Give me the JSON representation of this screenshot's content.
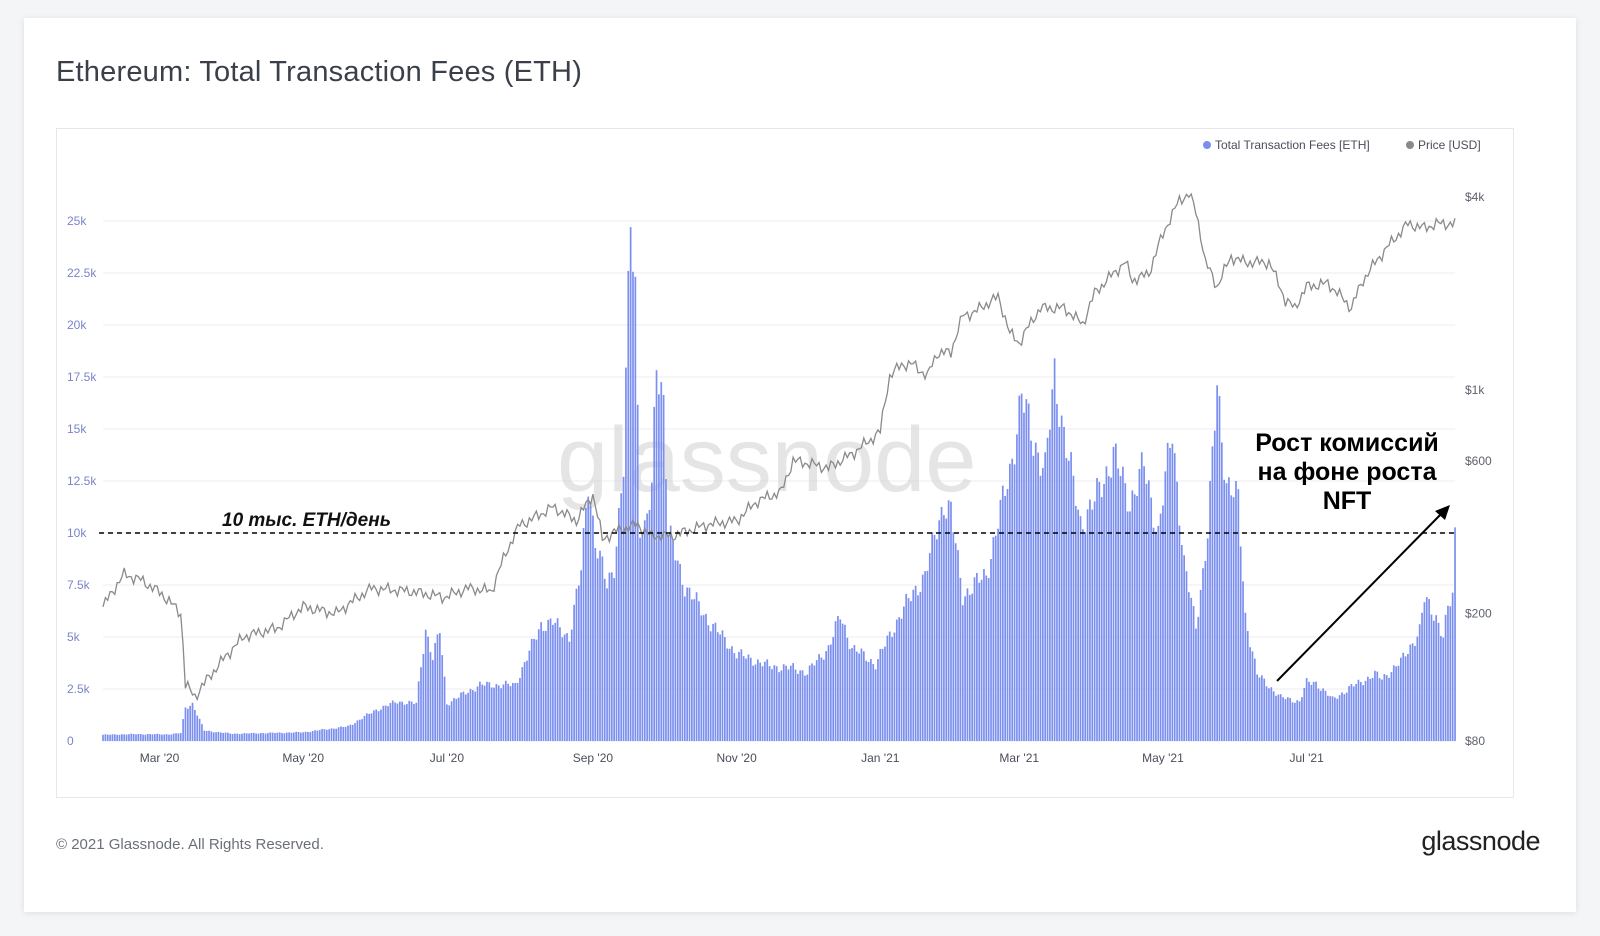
{
  "title": "Ethereum: Total Transaction Fees (ETH)",
  "footer": {
    "copyright": "© 2021 Glassnode. All Rights Reserved.",
    "logo": "glassnode"
  },
  "watermark": "glassnode",
  "colors": {
    "bars": "#7b8ff0",
    "price": "#8a8a8a",
    "grid": "#eeeef2",
    "annotation": "#000000"
  },
  "chart_data": {
    "type": "bar",
    "legend": [
      "Total Transaction Fees [ETH]",
      "Price [USD]"
    ],
    "legend_position": "top-right",
    "grid": true,
    "y_left": {
      "ticks": [
        0,
        2500,
        5000,
        7500,
        10000,
        12500,
        15000,
        17500,
        20000,
        22500,
        25000
      ],
      "tick_labels": [
        "0",
        "2.5k",
        "5k",
        "7.5k",
        "10k",
        "12.5k",
        "15k",
        "17.5k",
        "20k",
        "22.5k",
        "25k"
      ],
      "range": [
        0,
        25000
      ]
    },
    "y_right": {
      "scale": "log",
      "ticks": [
        80,
        200,
        600,
        1000,
        4000
      ],
      "tick_labels": [
        "$80",
        "$200",
        "$600",
        "$1k",
        "$4k"
      ],
      "range": [
        80,
        4000
      ]
    },
    "x_ticks": [
      "Mar '20",
      "May '20",
      "Jul '20",
      "Sep '20",
      "Nov '20",
      "Jan '21",
      "Mar '21",
      "May '21",
      "Jul '21"
    ],
    "x_tick_dates": [
      "2020-03-01",
      "2020-05-01",
      "2020-07-01",
      "2020-09-01",
      "2020-11-01",
      "2021-01-01",
      "2021-03-01",
      "2021-05-01",
      "2021-07-01"
    ],
    "x_range": [
      "2020-02-06",
      "2021-08-23"
    ],
    "fees_series": {
      "name": "Total Transaction Fees [ETH]",
      "keypoints": [
        [
          "2020-02-06",
          300
        ],
        [
          "2020-02-20",
          330
        ],
        [
          "2020-03-05",
          320
        ],
        [
          "2020-03-10",
          380
        ],
        [
          "2020-03-12",
          1600
        ],
        [
          "2020-03-15",
          1800
        ],
        [
          "2020-03-20",
          500
        ],
        [
          "2020-04-01",
          350
        ],
        [
          "2020-05-01",
          420
        ],
        [
          "2020-05-20",
          700
        ],
        [
          "2020-06-01",
          1500
        ],
        [
          "2020-06-10",
          1900
        ],
        [
          "2020-06-18",
          1800
        ],
        [
          "2020-06-22",
          5400
        ],
        [
          "2020-06-25",
          4000
        ],
        [
          "2020-06-28",
          5300
        ],
        [
          "2020-07-01",
          1800
        ],
        [
          "2020-07-15",
          2700
        ],
        [
          "2020-07-20",
          2700
        ],
        [
          "2020-07-30",
          2700
        ],
        [
          "2020-08-10",
          5600
        ],
        [
          "2020-08-15",
          5700
        ],
        [
          "2020-08-22",
          5000
        ],
        [
          "2020-08-27",
          8200
        ],
        [
          "2020-08-30",
          12700
        ],
        [
          "2020-09-02",
          9500
        ],
        [
          "2020-09-07",
          7500
        ],
        [
          "2020-09-10",
          8500
        ],
        [
          "2020-09-14",
          13000
        ],
        [
          "2020-09-17",
          25300
        ],
        [
          "2020-09-19",
          22000
        ],
        [
          "2020-09-21",
          10500
        ],
        [
          "2020-09-23",
          10000
        ],
        [
          "2020-09-26",
          12000
        ],
        [
          "2020-09-28",
          18500
        ],
        [
          "2020-10-01",
          16500
        ],
        [
          "2020-10-03",
          10000
        ],
        [
          "2020-10-10",
          7500
        ],
        [
          "2020-10-20",
          5800
        ],
        [
          "2020-11-01",
          4200
        ],
        [
          "2020-11-15",
          3600
        ],
        [
          "2020-11-25",
          3500
        ],
        [
          "2020-12-01",
          3300
        ],
        [
          "2020-12-10",
          4500
        ],
        [
          "2020-12-15",
          6000
        ],
        [
          "2020-12-20",
          4500
        ],
        [
          "2020-12-30",
          3700
        ],
        [
          "2021-01-10",
          6200
        ],
        [
          "2021-01-20",
          8000
        ],
        [
          "2021-01-28",
          11500
        ],
        [
          "2021-01-31",
          11000
        ],
        [
          "2021-02-05",
          7000
        ],
        [
          "2021-02-15",
          8000
        ],
        [
          "2021-02-25",
          13000
        ],
        [
          "2021-03-02",
          16500
        ],
        [
          "2021-03-07",
          14500
        ],
        [
          "2021-03-12",
          13000
        ],
        [
          "2021-03-16",
          17600
        ],
        [
          "2021-03-22",
          13500
        ],
        [
          "2021-03-27",
          10500
        ],
        [
          "2021-04-02",
          11500
        ],
        [
          "2021-04-10",
          13800
        ],
        [
          "2021-04-17",
          11500
        ],
        [
          "2021-04-23",
          13200
        ],
        [
          "2021-04-29",
          10000
        ],
        [
          "2021-05-05",
          15000
        ],
        [
          "2021-05-10",
          8500
        ],
        [
          "2021-05-15",
          5500
        ],
        [
          "2021-05-20",
          10000
        ],
        [
          "2021-05-24",
          17000
        ],
        [
          "2021-05-28",
          12500
        ],
        [
          "2021-06-02",
          11500
        ],
        [
          "2021-06-05",
          6000
        ],
        [
          "2021-06-10",
          3200
        ],
        [
          "2021-06-20",
          2100
        ],
        [
          "2021-06-28",
          1900
        ],
        [
          "2021-07-01",
          2800
        ],
        [
          "2021-07-05",
          2800
        ],
        [
          "2021-07-12",
          2000
        ],
        [
          "2021-07-20",
          2600
        ],
        [
          "2021-07-30",
          3200
        ],
        [
          "2021-08-02",
          3000
        ],
        [
          "2021-08-10",
          3800
        ],
        [
          "2021-08-18",
          5300
        ],
        [
          "2021-08-20",
          6800
        ],
        [
          "2021-08-25",
          6000
        ],
        [
          "2021-08-28",
          5000
        ],
        [
          "2021-08-30",
          6300
        ],
        [
          "2021-09-01",
          7000
        ],
        [
          "2021-09-02",
          9900
        ]
      ]
    },
    "price_series": {
      "name": "Price [USD]",
      "keypoints": [
        [
          "2020-02-06",
          210
        ],
        [
          "2020-02-15",
          265
        ],
        [
          "2020-02-22",
          255
        ],
        [
          "2020-03-02",
          230
        ],
        [
          "2020-03-10",
          200
        ],
        [
          "2020-03-12",
          120
        ],
        [
          "2020-03-16",
          110
        ],
        [
          "2020-03-25",
          135
        ],
        [
          "2020-04-06",
          170
        ],
        [
          "2020-04-20",
          180
        ],
        [
          "2020-05-01",
          210
        ],
        [
          "2020-05-15",
          200
        ],
        [
          "2020-05-30",
          240
        ],
        [
          "2020-06-15",
          235
        ],
        [
          "2020-06-30",
          225
        ],
        [
          "2020-07-10",
          240
        ],
        [
          "2020-07-20",
          235
        ],
        [
          "2020-07-27",
          320
        ],
        [
          "2020-08-01",
          380
        ],
        [
          "2020-08-05",
          390
        ],
        [
          "2020-08-15",
          430
        ],
        [
          "2020-08-25",
          390
        ],
        [
          "2020-09-01",
          470
        ],
        [
          "2020-09-05",
          340
        ],
        [
          "2020-09-10",
          360
        ],
        [
          "2020-09-20",
          380
        ],
        [
          "2020-09-25",
          350
        ],
        [
          "2020-10-05",
          350
        ],
        [
          "2020-10-20",
          380
        ],
        [
          "2020-11-01",
          390
        ],
        [
          "2020-11-10",
          450
        ],
        [
          "2020-11-20",
          480
        ],
        [
          "2020-11-25",
          600
        ],
        [
          "2020-12-01",
          590
        ],
        [
          "2020-12-10",
          570
        ],
        [
          "2020-12-20",
          630
        ],
        [
          "2020-12-27",
          690
        ],
        [
          "2021-01-01",
          740
        ],
        [
          "2021-01-05",
          1100
        ],
        [
          "2021-01-10",
          1200
        ],
        [
          "2021-01-15",
          1200
        ],
        [
          "2021-01-21",
          1100
        ],
        [
          "2021-01-25",
          1300
        ],
        [
          "2021-01-31",
          1310
        ],
        [
          "2021-02-05",
          1700
        ],
        [
          "2021-02-10",
          1750
        ],
        [
          "2021-02-20",
          1950
        ],
        [
          "2021-02-25",
          1500
        ],
        [
          "2021-03-01",
          1400
        ],
        [
          "2021-03-10",
          1800
        ],
        [
          "2021-03-20",
          1800
        ],
        [
          "2021-03-28",
          1600
        ],
        [
          "2021-04-02",
          2000
        ],
        [
          "2021-04-15",
          2500
        ],
        [
          "2021-04-18",
          2200
        ],
        [
          "2021-04-25",
          2300
        ],
        [
          "2021-05-03",
          3300
        ],
        [
          "2021-05-08",
          3900
        ],
        [
          "2021-05-12",
          4100
        ],
        [
          "2021-05-15",
          3600
        ],
        [
          "2021-05-19",
          2500
        ],
        [
          "2021-05-24",
          2100
        ],
        [
          "2021-05-30",
          2600
        ],
        [
          "2021-06-05",
          2500
        ],
        [
          "2021-06-15",
          2500
        ],
        [
          "2021-06-22",
          1900
        ],
        [
          "2021-06-26",
          1800
        ],
        [
          "2021-07-01",
          2100
        ],
        [
          "2021-07-10",
          2150
        ],
        [
          "2021-07-20",
          1800
        ],
        [
          "2021-07-25",
          2200
        ],
        [
          "2021-08-01",
          2600
        ],
        [
          "2021-08-08",
          3000
        ],
        [
          "2021-08-13",
          3300
        ],
        [
          "2021-08-20",
          3200
        ],
        [
          "2021-08-25",
          3300
        ],
        [
          "2021-09-02",
          3300
        ]
      ]
    },
    "annotations": {
      "threshold_value": 10000,
      "threshold_label": "10 тыс. ETH/день",
      "nft_label_lines": [
        "Рост комиссий",
        "на фоне роста",
        "NFT"
      ]
    }
  }
}
